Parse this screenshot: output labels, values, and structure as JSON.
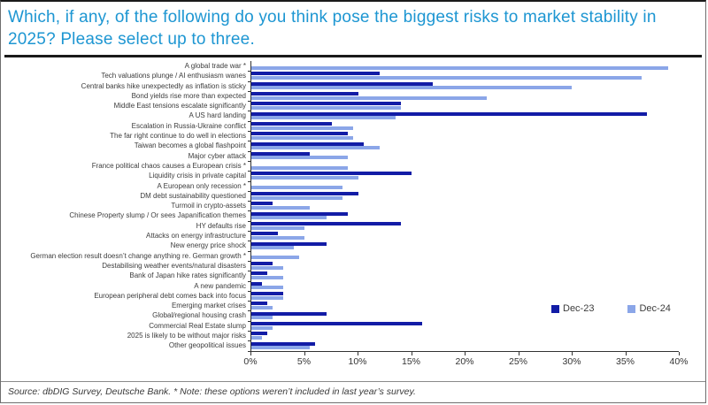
{
  "title": "Which, if any, of the following do you think pose the biggest risks to market stability in 2025? Please select up to three.",
  "footer": "Source: dbDIG Survey, Deutsche Bank.  * Note: these options weren’t included in last year’s survey.",
  "colors": {
    "title_blue": "#1d96d2",
    "dec23_navy": "#121ca6",
    "dec24_light_blue": "#8ba6e8",
    "axis_text": "#333333"
  },
  "legend": [
    {
      "label": "Dec-23",
      "color": "#121ca6"
    },
    {
      "label": "Dec-24",
      "color": "#8ba6e8"
    }
  ],
  "chart_data": {
    "type": "bar",
    "orientation": "horizontal",
    "title": "Which, if any, of the following do you think pose the biggest risks to market stability in 2025? Please select up to three.",
    "xlabel": "",
    "ylabel": "",
    "xlim": [
      0,
      40
    ],
    "x_tick_labels": [
      "0%",
      "5%",
      "10%",
      "15%",
      "20%",
      "25%",
      "30%",
      "35%",
      "40%"
    ],
    "grid": false,
    "legend_position": "inside-right-bottom",
    "note": "* options not included in last year's survey (no Dec-23 bar)",
    "categories": [
      "A global trade war *",
      "Tech valuations plunge / AI enthusiasm wanes",
      "Central banks hike unexpectedly as inflation is sticky",
      "Bond yields rise more than expected",
      "Middle East tensions escalate significantly",
      "A US hard landing",
      "Escalation in Russia-Ukraine conflict",
      "The far right continue to do well in elections",
      "Taiwan becomes a global flashpoint",
      "Major cyber attack",
      "France political chaos causes a European crisis *",
      "Liquidity crisis in private capital",
      "A European only recession *",
      "DM debt sustainability questioned",
      "Turmoil in crypto-assets",
      "Chinese Property slump / Or sees Japanification themes",
      "HY defaults rise",
      "Attacks on energy infrastructure",
      "New energy price shock",
      "German election result doesn’t change anything re. German growth *",
      "Destabilising weather events/natural disasters",
      "Bank of Japan hike rates significantly",
      "A new pandemic",
      "European peripheral debt comes back into focus",
      "Emerging market crises",
      "Global/regional housing crash",
      "Commercial Real Estate slump",
      "2025 is likely to be without major risks",
      "Other geopolitical issues"
    ],
    "series": [
      {
        "name": "Dec-23",
        "color": "#121ca6",
        "values": [
          null,
          12,
          17,
          10,
          14,
          37,
          7.5,
          9,
          10.5,
          5.5,
          null,
          15,
          null,
          10,
          2,
          9,
          14,
          2.5,
          7,
          null,
          2,
          1.5,
          1,
          3,
          1.5,
          7,
          16,
          1.5,
          6
        ]
      },
      {
        "name": "Dec-24",
        "color": "#8ba6e8",
        "values": [
          39,
          36.5,
          30,
          22,
          14,
          13.5,
          9.5,
          9.5,
          12,
          9,
          9,
          10,
          8.5,
          8.5,
          5.5,
          7,
          5,
          5,
          4,
          4.5,
          3,
          3,
          3,
          3,
          2,
          2,
          2,
          1,
          5.5
        ]
      }
    ]
  }
}
